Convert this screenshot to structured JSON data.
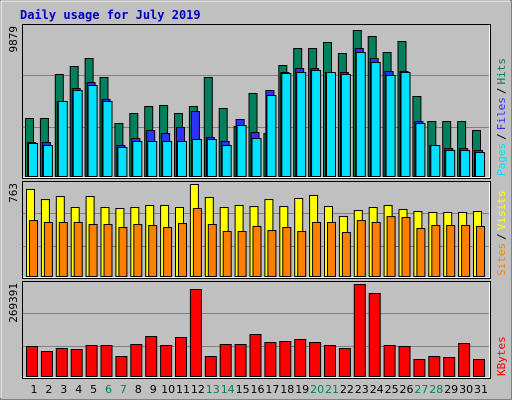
{
  "chart_data": [
    {
      "type": "bar",
      "title": "Daily usage for July 2019",
      "ylim": [
        0,
        9879
      ],
      "legend_separator": "/",
      "series": [
        {
          "name": "Hits",
          "color": "#00805c",
          "values": [
            3924,
            3924,
            6901,
            7443,
            7984,
            6698,
            3586,
            4263,
            4736,
            4804,
            4263,
            4736,
            6698,
            4601,
            3383,
            5616,
            2909,
            7510,
            8660,
            8660,
            9066,
            8322,
            9879,
            9472,
            8390,
            9134,
            5413,
            3721,
            3721,
            3721,
            3112
          ]
        },
        {
          "name": "Files",
          "color": "#3030ff",
          "values": [
            2300,
            2300,
            5075,
            5954,
            6360,
            5210,
            2097,
            2571,
            3112,
            2909,
            3315,
            4398,
            2639,
            2368,
            3857,
            2977,
            5819,
            7037,
            7307,
            7307,
            7037,
            7037,
            8660,
            7984,
            7104,
            7104,
            3721,
            2097,
            1894,
            1894,
            1759
          ]
        },
        {
          "name": "Pages",
          "color": "#00e0ff",
          "values": [
            2233,
            2097,
            5075,
            5819,
            6157,
            5075,
            1962,
            2368,
            2368,
            2368,
            2368,
            2503,
            2503,
            2097,
            3451,
            2571,
            5480,
            6969,
            7037,
            7172,
            7037,
            6901,
            8390,
            7713,
            6834,
            7037,
            3586,
            2097,
            1759,
            1759,
            1624
          ]
        }
      ]
    },
    {
      "type": "bar",
      "ylim": [
        0,
        763
      ],
      "legend_separator": "/",
      "series": [
        {
          "name": "Visits",
          "color": "#ffff00",
          "values": [
            722,
            638,
            663,
            572,
            663,
            572,
            564,
            572,
            589,
            589,
            572,
            763,
            655,
            572,
            589,
            580,
            638,
            580,
            647,
            672,
            580,
            498,
            547,
            572,
            589,
            556,
            539,
            531,
            531,
            531,
            539
          ]
        },
        {
          "name": "Sites",
          "color": "#ff8000",
          "values": [
            464,
            448,
            448,
            448,
            431,
            431,
            406,
            431,
            423,
            406,
            439,
            564,
            431,
            373,
            373,
            415,
            381,
            406,
            373,
            448,
            448,
            365,
            464,
            448,
            497,
            489,
            398,
            423,
            423,
            423,
            415
          ]
        }
      ]
    },
    {
      "type": "bar",
      "ylim": [
        0,
        269391
      ],
      "categories": [
        "1",
        "2",
        "3",
        "4",
        "5",
        "6",
        "7",
        "8",
        "9",
        "10",
        "11",
        "12",
        "13",
        "14",
        "15",
        "16",
        "17",
        "18",
        "19",
        "20",
        "21",
        "22",
        "23",
        "24",
        "25",
        "26",
        "27",
        "28",
        "29",
        "30",
        "31"
      ],
      "category_colors": [
        "#000000",
        "#000000",
        "#000000",
        "#000000",
        "#000000",
        "#00805c",
        "#00805c",
        "#000000",
        "#000000",
        "#000000",
        "#000000",
        "#000000",
        "#00805c",
        "#00805c",
        "#000000",
        "#000000",
        "#000000",
        "#000000",
        "#000000",
        "#00805c",
        "#00805c",
        "#000000",
        "#000000",
        "#000000",
        "#000000",
        "#000000",
        "#00805c",
        "#00805c",
        "#000000",
        "#000000",
        "#000000"
      ],
      "series": [
        {
          "name": "KBytes",
          "color": "#ff0000",
          "values": [
            87840,
            73200,
            81984,
            79056,
            90768,
            90768,
            58560,
            93696,
            117120,
            90768,
            114192,
            254736,
            58560,
            93696,
            93696,
            122976,
            99552,
            102480,
            108336,
            99552,
            90768,
            81984,
            269391,
            243024,
            90768,
            87840,
            49776,
            58560,
            55632,
            96624,
            49776
          ]
        }
      ]
    }
  ]
}
